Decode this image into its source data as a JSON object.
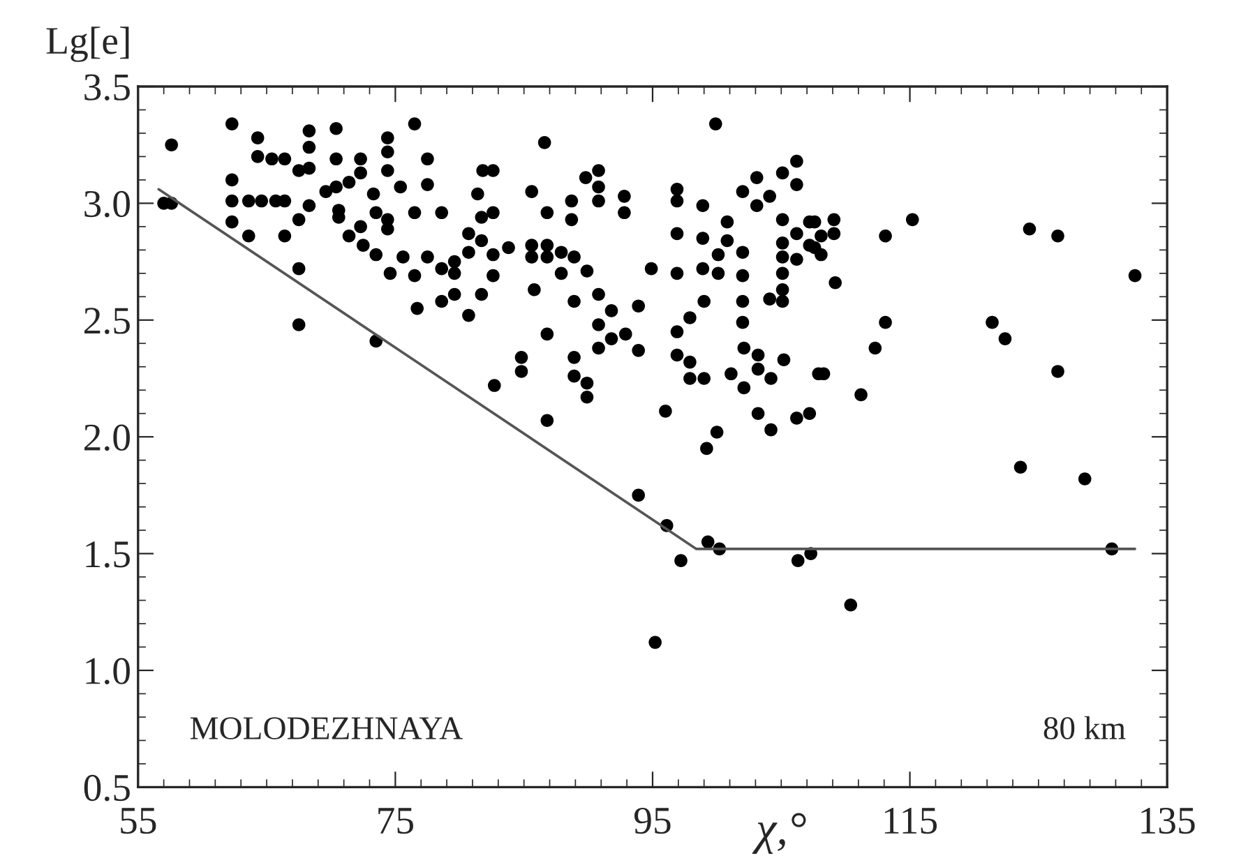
{
  "chart_data": {
    "type": "scatter",
    "xlabel": "χ,°",
    "ylabel": "Lg[e]",
    "xlim": [
      55,
      135
    ],
    "ylim": [
      0.5,
      3.5
    ],
    "xticks": [
      55,
      75,
      95,
      115,
      135
    ],
    "yticks": [
      {
        "value": 0.5,
        "label": "0.5"
      },
      {
        "value": 1.0,
        "label": "1.0"
      },
      {
        "value": 1.5,
        "label": "1.5"
      },
      {
        "value": 2.0,
        "label": "2.0"
      },
      {
        "value": 2.5,
        "label": "2.5"
      },
      {
        "value": 3.0,
        "label": "3.0"
      },
      {
        "value": 3.5,
        "label": "3.5"
      }
    ],
    "grid": false,
    "legend": false,
    "marker": "circle",
    "annotations": [
      "MOLODEZHNAYA",
      "80 km"
    ],
    "series": [
      {
        "color": "#000000",
        "x": [
          57.6,
          57.0,
          57.6,
          62.3,
          64.3,
          64.3,
          65.4,
          66.4,
          62.3,
          62.3,
          63.6,
          64.6,
          65.7,
          66.4,
          62.3,
          63.6,
          66.4,
          67.5,
          68.3,
          68.3,
          68.3,
          67.5,
          70.4,
          70.4,
          72.3,
          72.3,
          71.4,
          70.4,
          69.6,
          70.6,
          70.6,
          68.3,
          67.5,
          67.5,
          73.5,
          76.5,
          74.4,
          74.4,
          74.4,
          73.3,
          73.5,
          74.4,
          74.4,
          72.3,
          71.4,
          72.5,
          73.5,
          75.4,
          76.5,
          77.5,
          77.5,
          78.6,
          75.6,
          74.6,
          76.5,
          77.5,
          78.6,
          79.6,
          79.6,
          80.7,
          81.7,
          80.7,
          81.4,
          81.7,
          76.7,
          78.6,
          79.6,
          80.7,
          81.7,
          81.8,
          86.6,
          82.6,
          82.6,
          82.6,
          83.8,
          82.6,
          85.6,
          86.8,
          85.6,
          85.6,
          86.8,
          86.8,
          87.9,
          88.9,
          87.9,
          89.9,
          85.8,
          88.7,
          88.7,
          89.8,
          90.8,
          90.8,
          90.8,
          92.8,
          92.8,
          88.9,
          90.8,
          91.8,
          93.9,
          90.8,
          92.9,
          91.8,
          90.8,
          93.9,
          86.8,
          84.8,
          84.8,
          82.7,
          88.9,
          88.9,
          89.9,
          89.9,
          86.8,
          99.9,
          96.9,
          96.9,
          98.9,
          96.9,
          98.9,
          100.8,
          100.8,
          100.1,
          102.0,
          94.9,
          96.9,
          98.9,
          100.1,
          102.0,
          102.0,
          103.1,
          103.1,
          104.1,
          105.1,
          106.2,
          106.2,
          105.1,
          106.2,
          107.2,
          107.2,
          105.1,
          105.1,
          105.1,
          106.2,
          105.1,
          104.1,
          105.1,
          102.0,
          102.0,
          99.0,
          97.9,
          96.9,
          96.9,
          97.9,
          97.9,
          99.0,
          101.1,
          102.1,
          103.2,
          103.2,
          102.1,
          104.2,
          105.2,
          107.9,
          96.0,
          100.0,
          99.2,
          103.2,
          104.2,
          106.2,
          107.2,
          109.1,
          109.1,
          109.2,
          107.6,
          108.1,
          108.1,
          107.6,
          113.1,
          115.2,
          113.1,
          112.3,
          111.2,
          108.3,
          124.3,
          126.5,
          132.5,
          121.4,
          122.4,
          126.5,
          123.6,
          128.6,
          130.7,
          110.4,
          107.3,
          106.3,
          93.9,
          96.1,
          97.2,
          99.3,
          100.2,
          95.2
        ],
        "values": [
          3.25,
          3.0,
          3.0,
          3.34,
          3.28,
          3.2,
          3.19,
          3.19,
          3.1,
          3.01,
          3.01,
          3.01,
          3.01,
          3.01,
          2.92,
          2.86,
          2.86,
          2.93,
          3.31,
          3.24,
          3.15,
          3.14,
          3.32,
          3.19,
          3.19,
          3.13,
          3.09,
          3.07,
          3.05,
          2.97,
          2.94,
          2.99,
          2.72,
          2.48,
          2.41,
          3.34,
          3.28,
          3.22,
          3.14,
          3.04,
          2.96,
          2.93,
          2.89,
          2.9,
          2.86,
          2.82,
          2.78,
          3.07,
          2.96,
          3.19,
          3.08,
          2.96,
          2.77,
          2.7,
          2.69,
          2.77,
          2.72,
          2.75,
          2.7,
          2.79,
          2.84,
          2.87,
          3.04,
          2.94,
          2.55,
          2.58,
          2.61,
          2.52,
          2.61,
          3.14,
          3.26,
          3.14,
          2.96,
          2.78,
          2.81,
          2.69,
          3.05,
          2.96,
          2.82,
          2.77,
          2.82,
          2.77,
          2.79,
          2.77,
          2.7,
          2.71,
          2.63,
          3.01,
          2.93,
          3.11,
          3.14,
          3.07,
          3.01,
          3.03,
          2.96,
          2.58,
          2.61,
          2.54,
          2.56,
          2.48,
          2.44,
          2.42,
          2.38,
          2.37,
          2.44,
          2.34,
          2.28,
          2.22,
          2.34,
          2.26,
          2.23,
          2.17,
          2.07,
          3.34,
          3.06,
          3.01,
          2.99,
          2.87,
          2.85,
          2.92,
          2.84,
          2.78,
          2.79,
          2.72,
          2.7,
          2.72,
          2.7,
          2.69,
          3.05,
          3.11,
          2.99,
          3.03,
          3.13,
          3.18,
          3.08,
          2.93,
          2.87,
          2.92,
          2.82,
          2.83,
          2.77,
          2.7,
          2.76,
          2.63,
          2.59,
          2.58,
          2.58,
          2.49,
          2.58,
          2.51,
          2.45,
          2.35,
          2.32,
          2.25,
          2.25,
          2.27,
          2.38,
          2.35,
          2.29,
          2.21,
          2.25,
          2.33,
          2.27,
          2.11,
          2.02,
          1.95,
          2.1,
          2.03,
          2.08,
          2.1,
          2.93,
          2.87,
          2.66,
          2.92,
          2.86,
          2.78,
          2.81,
          2.86,
          2.93,
          2.49,
          2.38,
          2.18,
          2.27,
          2.89,
          2.86,
          2.69,
          2.49,
          2.42,
          2.28,
          1.87,
          1.82,
          1.52,
          1.28,
          1.5,
          1.47,
          1.75,
          1.62,
          1.47,
          1.55,
          1.52,
          1.12
        ]
      },
      {
        "type": "line",
        "color": "#555555",
        "marker": "none",
        "line_style": "solid",
        "x": [
          56.6,
          98.4,
          132.5
        ],
        "values": [
          3.06,
          1.52,
          1.52
        ]
      }
    ]
  }
}
